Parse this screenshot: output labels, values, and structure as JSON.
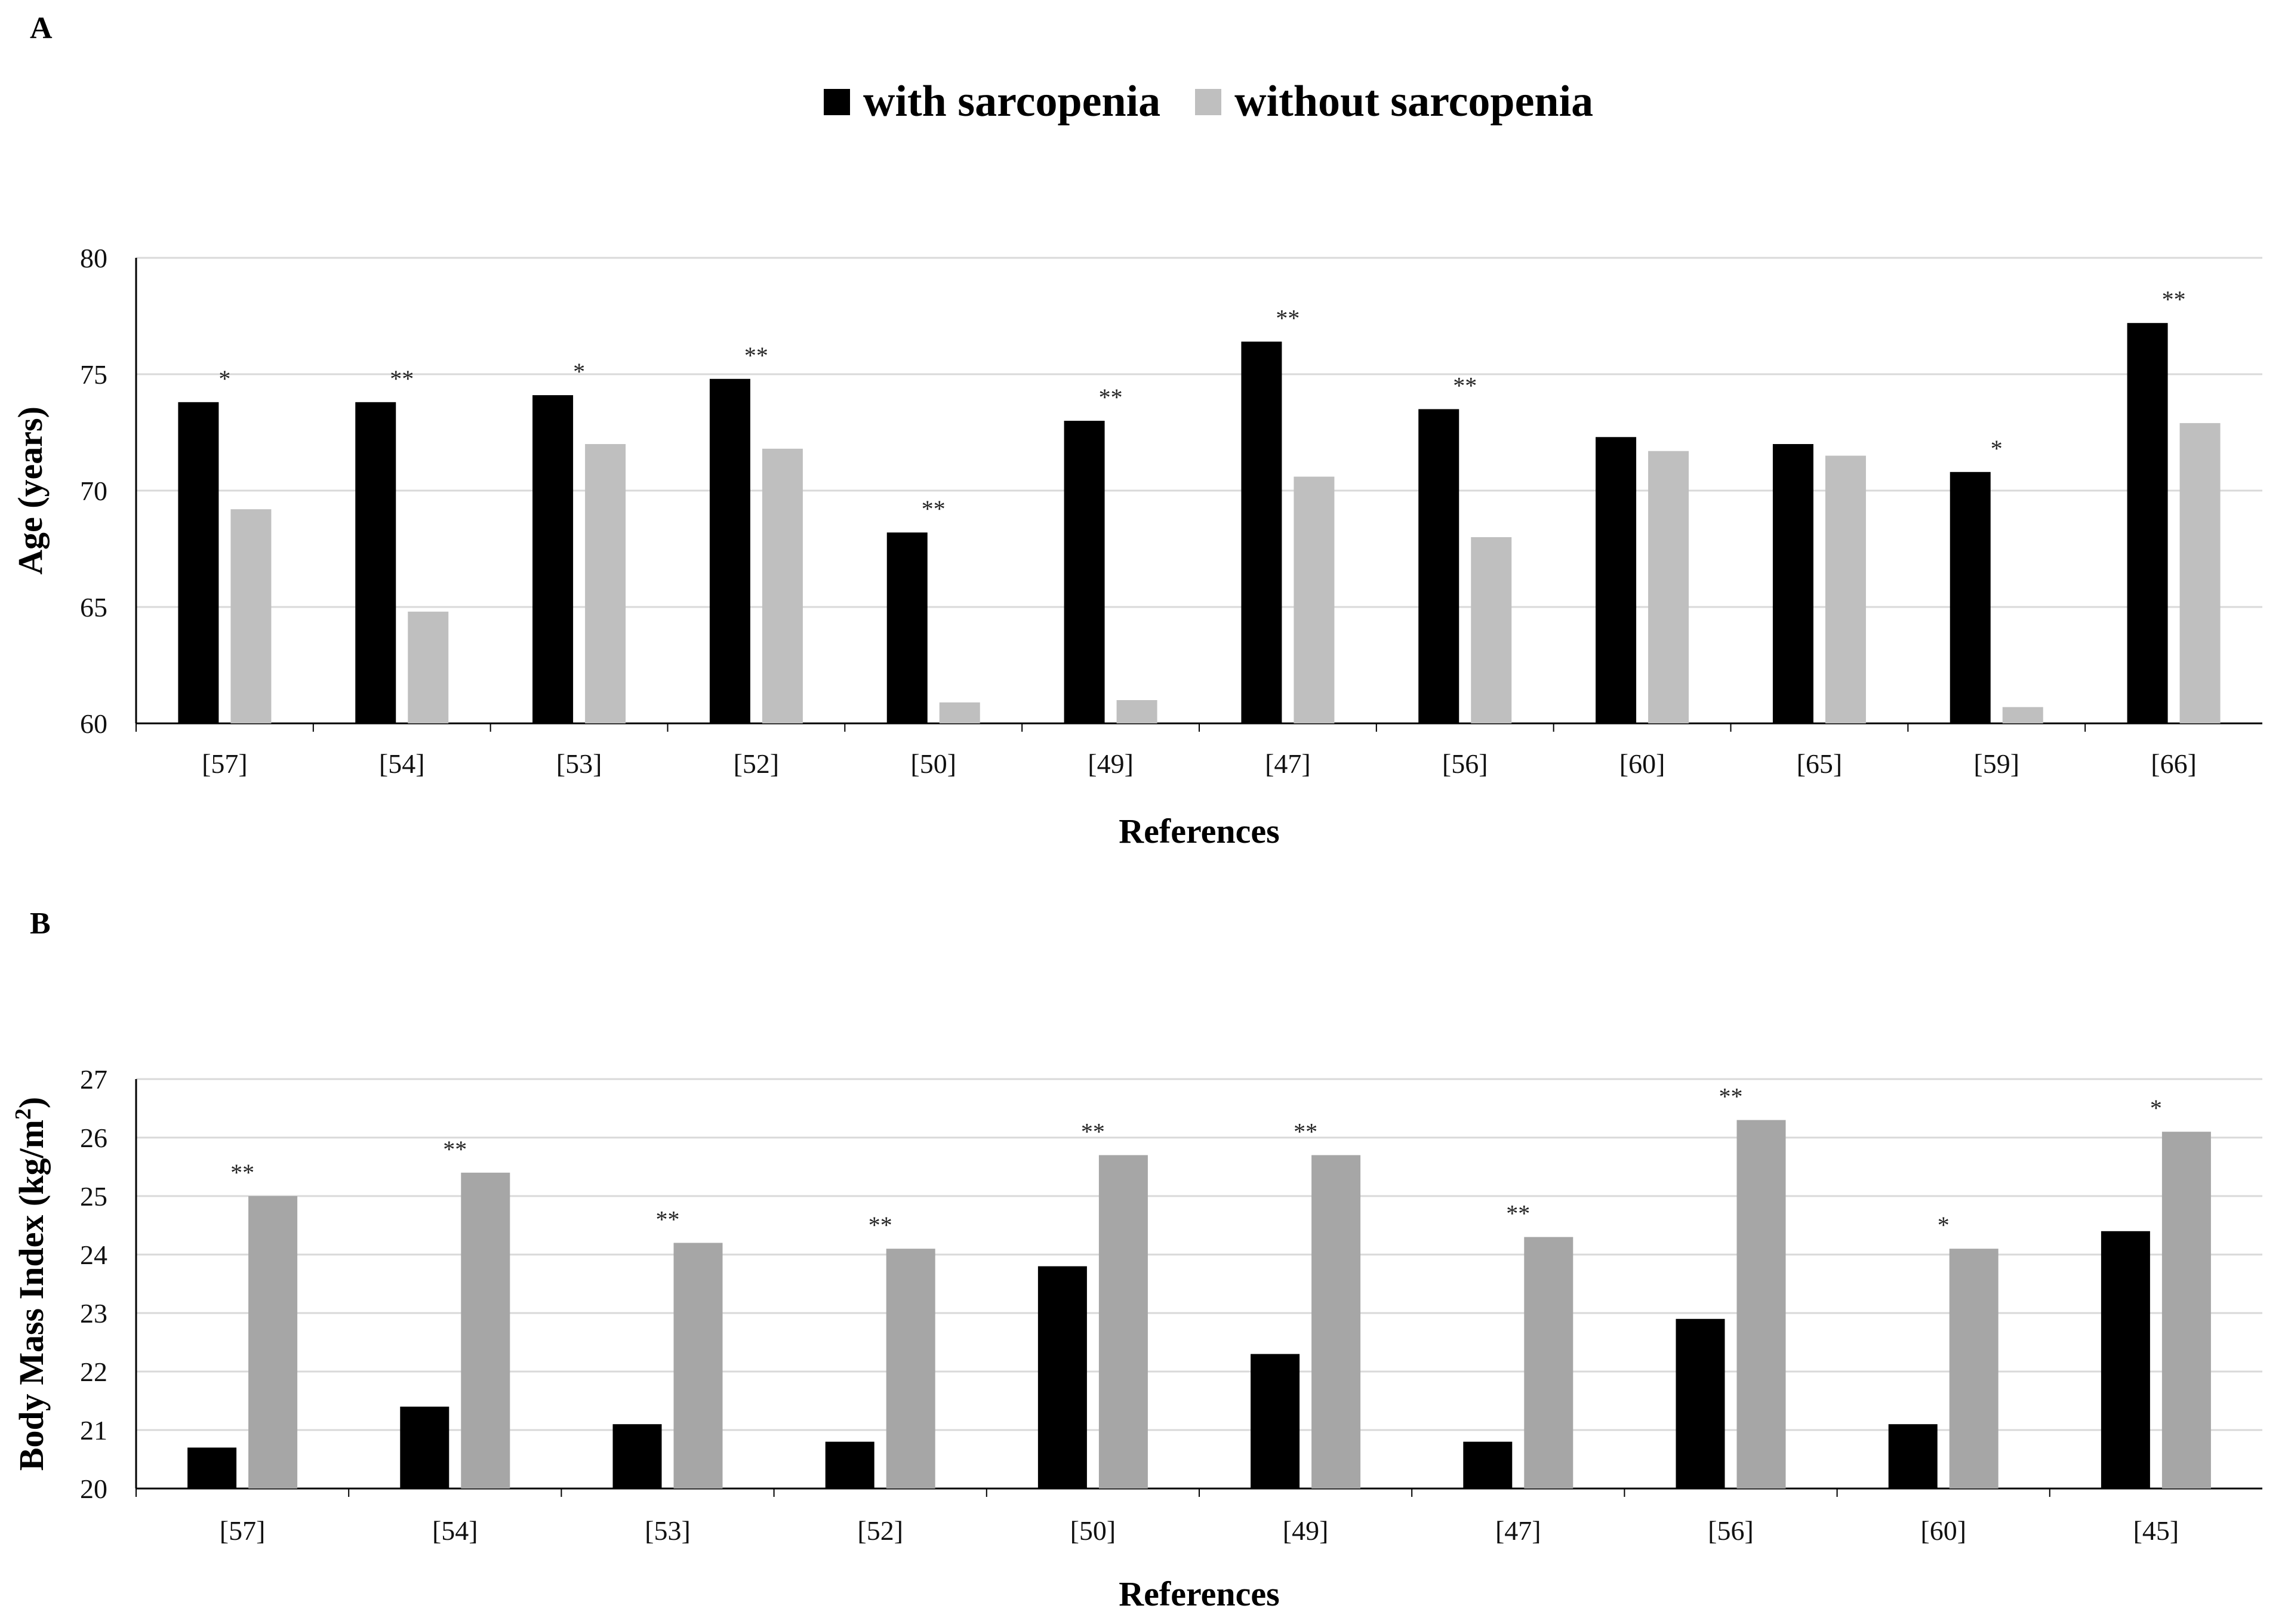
{
  "legend": {
    "with_label": "with sarcopenia",
    "without_label": "without sarcopenia",
    "with_color": "#000000",
    "without_color": "#bfbfbf"
  },
  "chart_data": [
    {
      "panel": "A",
      "type": "bar",
      "ylabel": "Age (years)",
      "xlabel": "References",
      "ylim": [
        60,
        80
      ],
      "yticks": [
        60,
        65,
        70,
        75,
        80
      ],
      "grid": true,
      "categories": [
        "[57]",
        "[54]",
        "[53]",
        "[52]",
        "[50]",
        "[49]",
        "[47]",
        "[56]",
        "[60]",
        "[65]",
        "[59]",
        "[66]"
      ],
      "series": [
        {
          "name": "with sarcopenia",
          "color": "#000000",
          "values": [
            73.8,
            73.8,
            74.1,
            74.8,
            68.2,
            73.0,
            76.4,
            73.5,
            72.3,
            72.0,
            70.8,
            77.2
          ]
        },
        {
          "name": "without sarcopenia",
          "color": "#bfbfbf",
          "values": [
            69.2,
            64.8,
            72.0,
            71.8,
            60.9,
            61.0,
            70.6,
            68.0,
            71.7,
            71.5,
            60.7,
            72.9
          ]
        }
      ],
      "significance": [
        "*",
        "**",
        "*",
        "**",
        "**",
        "**",
        "**",
        "**",
        "",
        "",
        "*",
        "**"
      ]
    },
    {
      "panel": "B",
      "type": "bar",
      "ylabel": "Body Mass Index (kg/m",
      "ylabel_sup": "2",
      "ylabel_end": ")",
      "xlabel": "References",
      "ylim": [
        20,
        27
      ],
      "yticks": [
        20,
        21,
        22,
        23,
        24,
        25,
        26,
        27
      ],
      "grid": true,
      "categories": [
        "[57]",
        "[54]",
        "[53]",
        "[52]",
        "[50]",
        "[49]",
        "[47]",
        "[56]",
        "[60]",
        "[45]"
      ],
      "series": [
        {
          "name": "with sarcopenia",
          "color": "#000000",
          "values": [
            20.7,
            21.4,
            21.1,
            20.8,
            23.8,
            22.3,
            20.8,
            22.9,
            21.1,
            24.4
          ]
        },
        {
          "name": "without sarcopenia",
          "color": "#a6a6a6",
          "values": [
            25.0,
            25.4,
            24.2,
            24.1,
            25.7,
            25.7,
            24.3,
            26.3,
            24.1,
            26.1
          ]
        }
      ],
      "significance": [
        "**",
        "**",
        "**",
        "**",
        "**",
        "**",
        "**",
        "**",
        "*",
        "*"
      ]
    }
  ]
}
